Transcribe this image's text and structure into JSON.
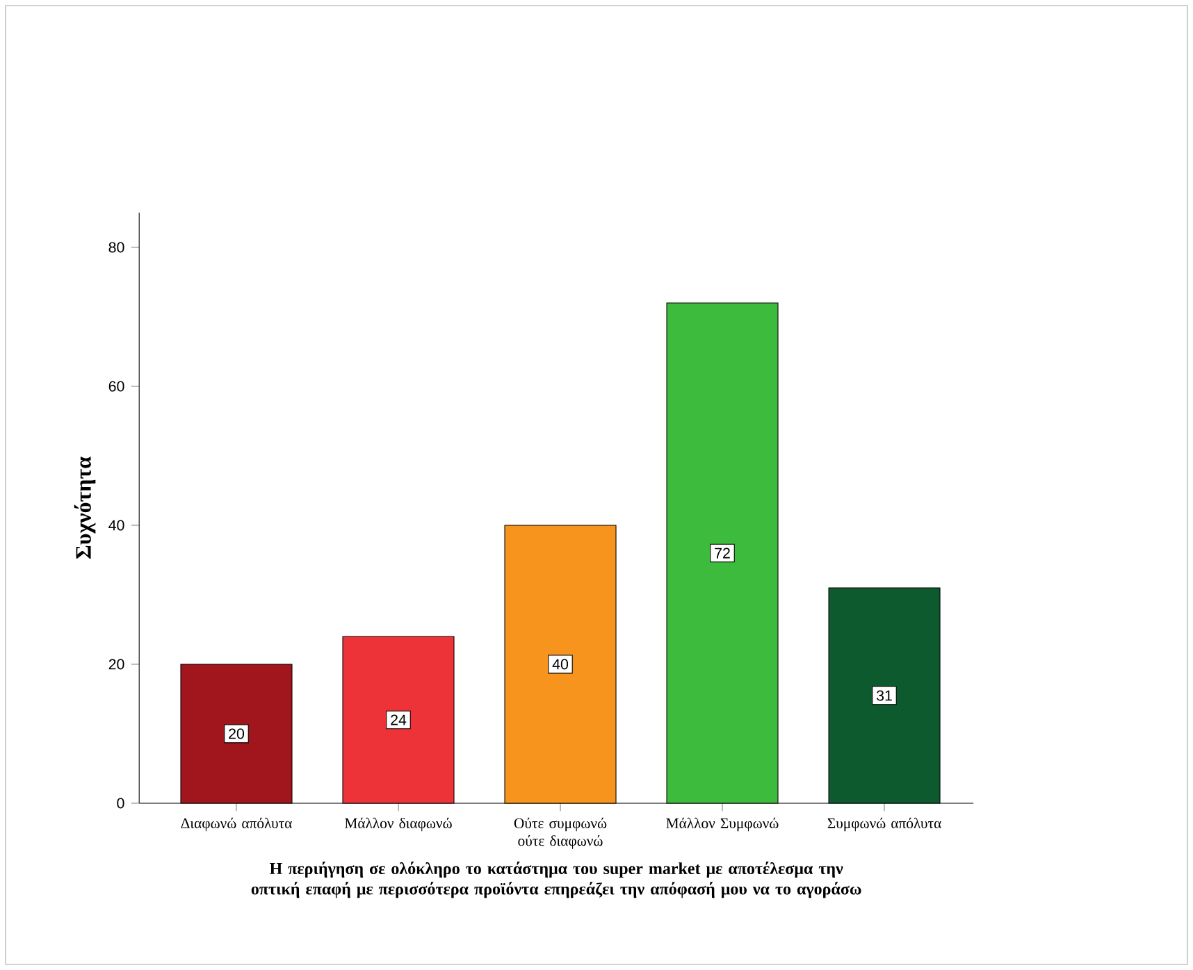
{
  "chart_data": {
    "type": "bar",
    "categories": [
      "Διαφωνώ απόλυτα",
      "Μάλλον διαφωνώ",
      "Ούτε συμφωνώ ούτε διαφωνώ",
      "Μάλλον Συμφωνώ",
      "Συμφωνώ απόλυτα"
    ],
    "values": [
      20,
      24,
      40,
      72,
      31
    ],
    "colors": [
      "#a0161c",
      "#ee3338",
      "#f7941d",
      "#3dbb3d",
      "#0d5a2e"
    ],
    "xlabel": "Η περιήγηση σε ολόκληρο το κατάστημα του super market με αποτέλεσμα την οπτική επαφή με περισσότερα προϊόντα επηρεάζει την απόφασή μου να το αγοράσω",
    "ylabel": "Συχνότητα",
    "ylim": [
      0,
      85
    ],
    "yticks": [
      0,
      20,
      40,
      60,
      80
    ],
    "data_labels": true,
    "grid": false
  }
}
